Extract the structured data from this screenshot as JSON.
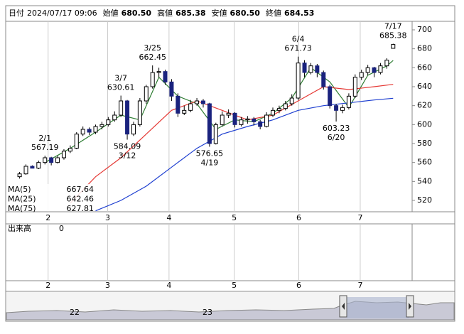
{
  "chart_data": {
    "type": "candlestick",
    "info": [
      {
        "label": "日付",
        "value": "2024/07/17 09:06",
        "color": "#000000"
      },
      {
        "label": "始値",
        "value": "680.50",
        "color": "#000000"
      },
      {
        "label": "高値",
        "value": "685.38",
        "color": "#e00000"
      },
      {
        "label": "安値",
        "value": "680.50",
        "color": "#007000"
      },
      {
        "label": "終値",
        "value": "684.53",
        "color": "#000000"
      }
    ],
    "categories": [
      null,
      null,
      null,
      null,
      "2/1",
      null,
      null,
      null,
      null,
      null,
      null,
      null,
      null,
      null,
      null,
      null,
      "3/7",
      "3/12",
      null,
      null,
      null,
      "3/25",
      null,
      null,
      null,
      null,
      null,
      null,
      null,
      null,
      "4/19",
      null,
      null,
      null,
      null,
      null,
      null,
      null,
      null,
      null,
      null,
      null,
      null,
      null,
      "6/4",
      null,
      null,
      null,
      null,
      null,
      "6/20",
      null,
      null,
      null,
      null,
      null,
      null,
      null,
      null,
      "7/17"
    ],
    "candles": [
      [
        545,
        550,
        543,
        548
      ],
      [
        548,
        558,
        547,
        556
      ],
      [
        556,
        557,
        553.73,
        554
      ],
      [
        554,
        562,
        553,
        560
      ],
      [
        560,
        567.19,
        558,
        565
      ],
      [
        565,
        566,
        557,
        560
      ],
      [
        560,
        567,
        559,
        565
      ],
      [
        565,
        574,
        563,
        572
      ],
      [
        572,
        578,
        570,
        575
      ],
      [
        575,
        592,
        574,
        590
      ],
      [
        590,
        598,
        588,
        595
      ],
      [
        595,
        597,
        589,
        592
      ],
      [
        592,
        600,
        590,
        598
      ],
      [
        598,
        603,
        595,
        600
      ],
      [
        600,
        608,
        598,
        605
      ],
      [
        605,
        614,
        603,
        610
      ],
      [
        610,
        630.61,
        608,
        625
      ],
      [
        625,
        626,
        584.09,
        590
      ],
      [
        590,
        603,
        588,
        600
      ],
      [
        600,
        628,
        598,
        625
      ],
      [
        625,
        642,
        622,
        640
      ],
      [
        640,
        662.45,
        638,
        655
      ],
      [
        655,
        660,
        650,
        656
      ],
      [
        656,
        658,
        642,
        645
      ],
      [
        645,
        648,
        625,
        630
      ],
      [
        630,
        633,
        608,
        612
      ],
      [
        612,
        620,
        610,
        615
      ],
      [
        615,
        626,
        613,
        622
      ],
      [
        622,
        628,
        620,
        625
      ],
      [
        625,
        627,
        618,
        622
      ],
      [
        622,
        623,
        576.65,
        580
      ],
      [
        580,
        602,
        579,
        600
      ],
      [
        600,
        614,
        598,
        610
      ],
      [
        610,
        616,
        607,
        612
      ],
      [
        612,
        613,
        597,
        600
      ],
      [
        600,
        608,
        598,
        605
      ],
      [
        605,
        609,
        601,
        606
      ],
      [
        606,
        608,
        599,
        603
      ],
      [
        603,
        605,
        595,
        598
      ],
      [
        598,
        613,
        597,
        610
      ],
      [
        610,
        618,
        608,
        615
      ],
      [
        615,
        620,
        612,
        617
      ],
      [
        617,
        625,
        615,
        622
      ],
      [
        622,
        632,
        620,
        628
      ],
      [
        628,
        671.73,
        626,
        665
      ],
      [
        665,
        668,
        650,
        655
      ],
      [
        655,
        665,
        653,
        662
      ],
      [
        662,
        664,
        650,
        655
      ],
      [
        655,
        657,
        637,
        640
      ],
      [
        640,
        642,
        617,
        620
      ],
      [
        620,
        622,
        603.23,
        615
      ],
      [
        615,
        621,
        612,
        618
      ],
      [
        618,
        633,
        616,
        630
      ],
      [
        630,
        653,
        628,
        650
      ],
      [
        650,
        658,
        647,
        655
      ],
      [
        655,
        663,
        652,
        660
      ],
      [
        660,
        661,
        650,
        655
      ],
      [
        655,
        665,
        653,
        662
      ],
      [
        662,
        670,
        659,
        668
      ],
      [
        680.5,
        685.38,
        680.5,
        684.53
      ]
    ],
    "up_color": "#ffffff",
    "down_color": "#1a237e",
    "series": [
      {
        "name": "MA(5)",
        "color": "#2e7d32",
        "x": [
          4,
          8,
          12,
          16,
          19,
          22,
          25,
          28,
          31,
          34,
          37,
          40,
          43,
          46,
          49,
          52,
          55,
          58,
          59
        ],
        "values": [
          560,
          575,
          592,
          610,
          605,
          650,
          630,
          622,
          595,
          605,
          603,
          612,
          628,
          660,
          645,
          618,
          652,
          662,
          667.64
        ]
      },
      {
        "name": "MA(25)",
        "color": "#e53935",
        "x": [
          8,
          12,
          16,
          20,
          24,
          28,
          32,
          36,
          40,
          44,
          48,
          52,
          56,
          59
        ],
        "values": [
          517,
          545,
          565,
          590,
          615,
          625,
          615,
          605,
          610,
          625,
          640,
          637,
          640,
          642.46
        ]
      },
      {
        "name": "MA(75)",
        "color": "#1e3fd0",
        "x": [
          12,
          16,
          20,
          24,
          28,
          32,
          36,
          40,
          44,
          48,
          52,
          56,
          59
        ],
        "values": [
          509,
          520,
          535,
          555,
          575,
          590,
          598,
          605,
          615,
          620,
          623,
          626,
          627.81
        ]
      }
    ],
    "ylim": [
      508,
      709
    ],
    "yticks": [
      520,
      540,
      560,
      580,
      600,
      620,
      640,
      660,
      680,
      700
    ],
    "xlim": [
      -2.2,
      62
    ],
    "xticks": [
      {
        "value": 4.5,
        "label": "2"
      },
      {
        "value": 13.9,
        "label": "3"
      },
      {
        "value": 23.6,
        "label": "4"
      },
      {
        "value": 33.9,
        "label": "5"
      },
      {
        "value": 44.1,
        "label": "6"
      },
      {
        "value": 53.8,
        "label": "7"
      }
    ],
    "grid": "x",
    "volume_label": "出来高",
    "volume_value": 0,
    "navigator_labels": [
      "22",
      "23"
    ]
  }
}
